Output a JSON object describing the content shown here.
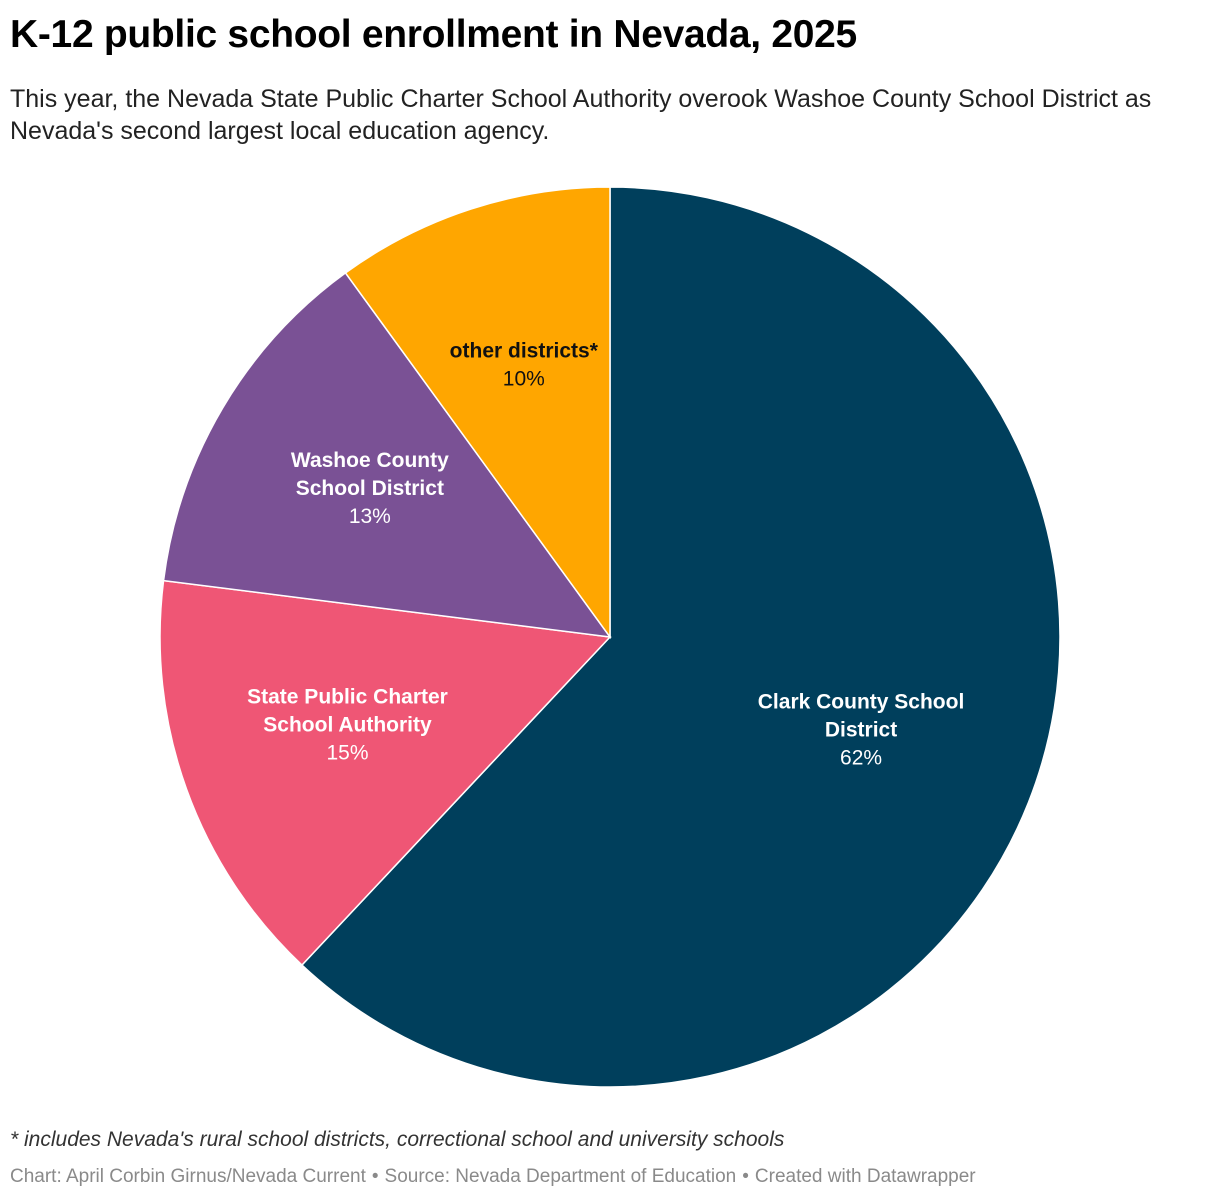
{
  "chart_data": {
    "type": "pie",
    "title": "K-12 public school enrollment in Nevada, 2025",
    "subtitle": "This year, the Nevada State Public Charter School Authority overook Washoe County School District as Nevada's second largest local education agency.",
    "slices": [
      {
        "label_lines": [
          "Clark County School",
          "District"
        ],
        "value": 62,
        "value_label": "62%",
        "color": "#003f5c",
        "text_color": "#ffffff"
      },
      {
        "label_lines": [
          "State Public Charter",
          "School Authority"
        ],
        "value": 15,
        "value_label": "15%",
        "color": "#ef5675",
        "text_color": "#ffffff"
      },
      {
        "label_lines": [
          "Washoe County",
          "School District"
        ],
        "value": 13,
        "value_label": "13%",
        "color": "#7a5195",
        "text_color": "#ffffff"
      },
      {
        "label_lines": [
          "other districts*"
        ],
        "value": 10,
        "value_label": "10%",
        "color": "#ffa600",
        "text_color": "#111111"
      }
    ],
    "start": "12 o'clock",
    "direction": "clockwise"
  },
  "notes": {
    "footnote": "* includes Nevada's rural school districts, correctional school and university schools"
  },
  "credits": {
    "chart_by": "Chart: April Corbin Girnus/Nevada Current",
    "separator": "•",
    "source": "Source: Nevada Department of Education",
    "created_with": "Created with Datawrapper"
  }
}
